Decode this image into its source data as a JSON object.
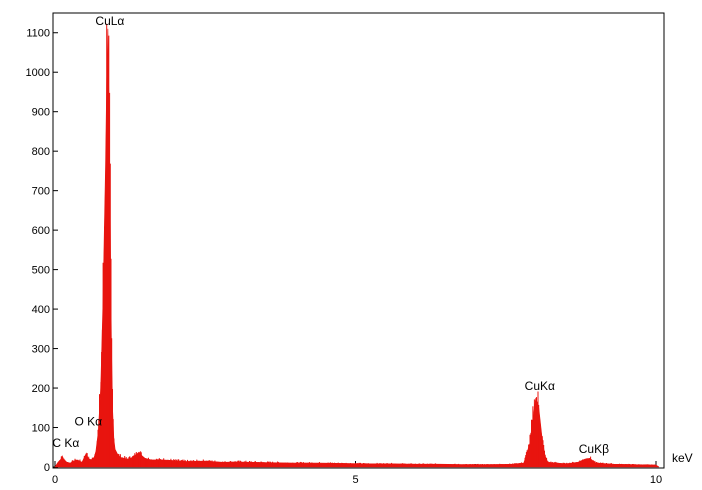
{
  "chart_data": {
    "type": "bar",
    "title": "",
    "xlabel": "keV",
    "ylabel": "",
    "xlim": [
      0,
      10.05
    ],
    "ylim": [
      0,
      1150
    ],
    "xticks": [
      {
        "value": 0,
        "label": "0"
      },
      {
        "value": 5,
        "label": "5"
      },
      {
        "value": 10,
        "label": "10"
      }
    ],
    "yticks": [
      {
        "value": 0,
        "label": "0"
      },
      {
        "value": 100,
        "label": "100"
      },
      {
        "value": 200,
        "label": "200"
      },
      {
        "value": 300,
        "label": "300"
      },
      {
        "value": 400,
        "label": "400"
      },
      {
        "value": 500,
        "label": "500"
      },
      {
        "value": 600,
        "label": "600"
      },
      {
        "value": 700,
        "label": "700"
      },
      {
        "value": 800,
        "label": "800"
      },
      {
        "value": 900,
        "label": "900"
      },
      {
        "value": 1000,
        "label": "1000"
      },
      {
        "value": 1100,
        "label": "1100"
      }
    ],
    "color": "#e8140f",
    "series": [
      {
        "values": [
          [
            0.0,
            0
          ],
          [
            0.05,
            12
          ],
          [
            0.1,
            20
          ],
          [
            0.12,
            28
          ],
          [
            0.15,
            18
          ],
          [
            0.2,
            12
          ],
          [
            0.25,
            10
          ],
          [
            0.3,
            14
          ],
          [
            0.35,
            18
          ],
          [
            0.4,
            16
          ],
          [
            0.45,
            12
          ],
          [
            0.5,
            28
          ],
          [
            0.52,
            35
          ],
          [
            0.55,
            22
          ],
          [
            0.6,
            18
          ],
          [
            0.65,
            24
          ],
          [
            0.68,
            40
          ],
          [
            0.72,
            90
          ],
          [
            0.76,
            200
          ],
          [
            0.8,
            430
          ],
          [
            0.82,
            600
          ],
          [
            0.84,
            760
          ],
          [
            0.86,
            980
          ],
          [
            0.88,
            1110
          ],
          [
            0.9,
            900
          ],
          [
            0.92,
            600
          ],
          [
            0.94,
            300
          ],
          [
            0.96,
            140
          ],
          [
            0.98,
            70
          ],
          [
            1.0,
            45
          ],
          [
            1.05,
            30
          ],
          [
            1.1,
            24
          ],
          [
            1.2,
            20
          ],
          [
            1.3,
            25
          ],
          [
            1.4,
            38
          ],
          [
            1.45,
            28
          ],
          [
            1.5,
            22
          ],
          [
            1.6,
            18
          ],
          [
            1.8,
            18
          ],
          [
            2.0,
            16
          ],
          [
            2.2,
            14
          ],
          [
            2.5,
            15
          ],
          [
            2.8,
            12
          ],
          [
            3.0,
            13
          ],
          [
            3.3,
            12
          ],
          [
            3.6,
            11
          ],
          [
            4.0,
            10
          ],
          [
            4.4,
            10
          ],
          [
            4.8,
            9
          ],
          [
            5.2,
            8
          ],
          [
            5.6,
            8
          ],
          [
            6.0,
            7
          ],
          [
            6.4,
            7
          ],
          [
            6.8,
            6
          ],
          [
            7.2,
            6
          ],
          [
            7.6,
            7
          ],
          [
            7.8,
            10
          ],
          [
            7.9,
            60
          ],
          [
            7.95,
            120
          ],
          [
            8.0,
            175
          ],
          [
            8.05,
            150
          ],
          [
            8.1,
            80
          ],
          [
            8.15,
            30
          ],
          [
            8.2,
            12
          ],
          [
            8.5,
            8
          ],
          [
            8.7,
            12
          ],
          [
            8.82,
            20
          ],
          [
            8.9,
            22
          ],
          [
            8.95,
            16
          ],
          [
            9.0,
            10
          ],
          [
            9.3,
            7
          ],
          [
            9.6,
            6
          ],
          [
            10.0,
            5
          ],
          [
            10.05,
            0
          ]
        ]
      }
    ],
    "annotations": [
      {
        "text": "CuLα",
        "x": 0.88,
        "y": 1110
      },
      {
        "text": "O Kα",
        "x": 0.52,
        "y": 95
      },
      {
        "text": "C Kα",
        "x": 0.28,
        "y": 45
      },
      {
        "text": "CuKα",
        "x": 8.0,
        "y": 180
      },
      {
        "text": "CuKβ",
        "x": 8.9,
        "y": 25
      }
    ]
  }
}
